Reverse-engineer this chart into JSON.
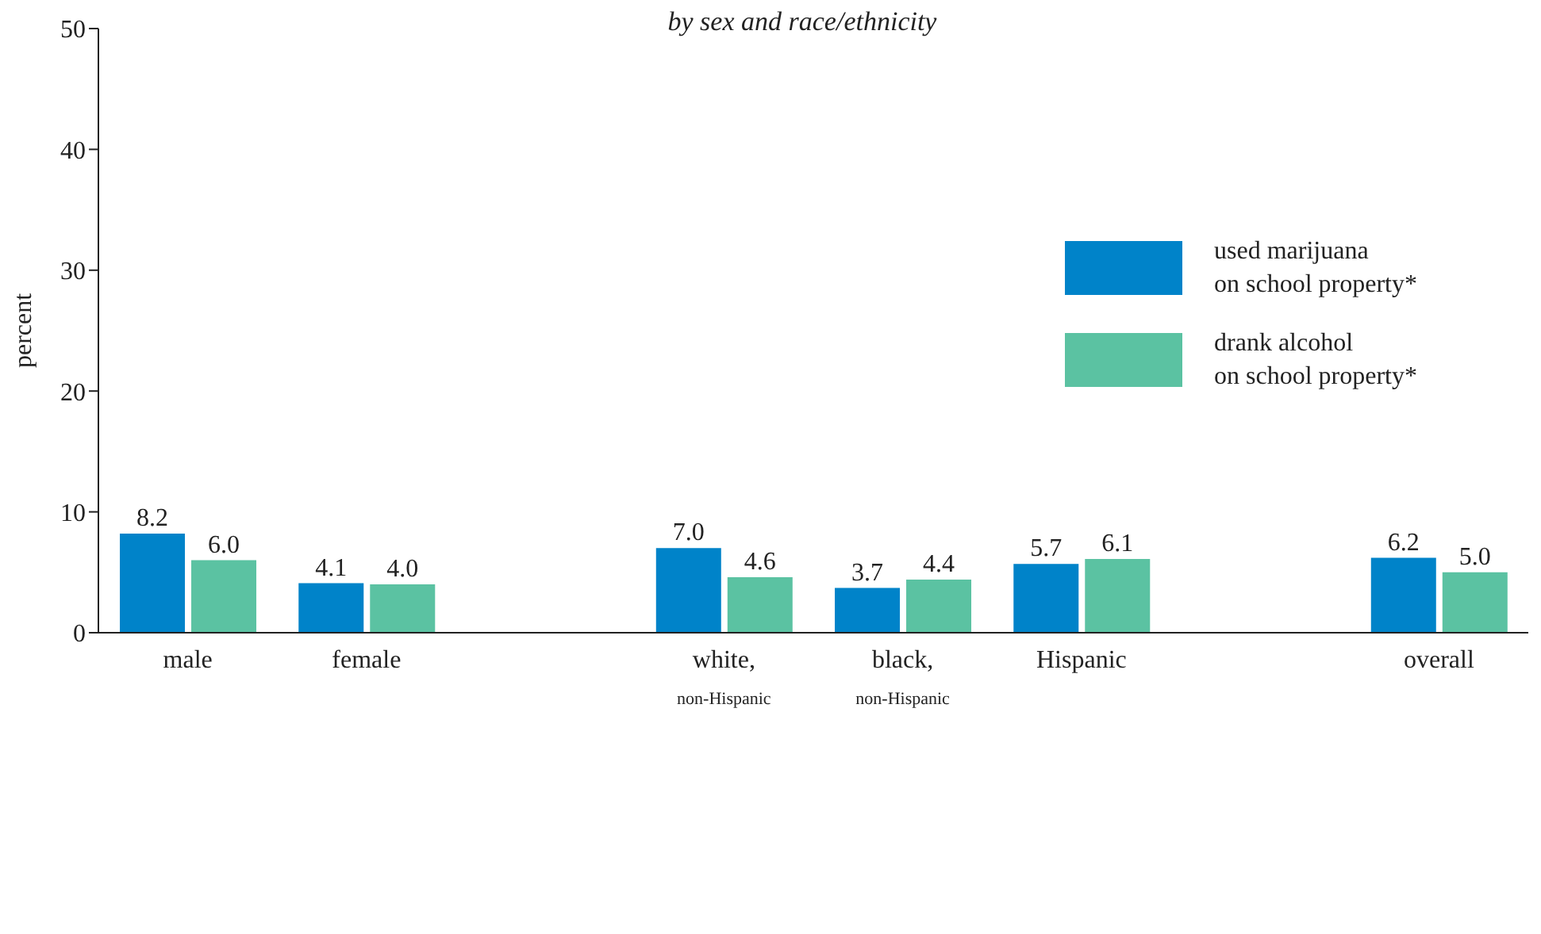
{
  "chart_data": {
    "type": "bar",
    "subtitle": "by sex and race/ethnicity",
    "ylabel": "percent",
    "categories": [
      "male",
      "female",
      null,
      "white,$_{non-Hispanic}$",
      "black,$_{non-Hispanic}$",
      "Hispanic",
      null,
      "overall"
    ],
    "series": [
      {
        "name": "used marijuana\non school property*",
        "color": "#0083c9",
        "values": [
          8.2,
          4.1,
          null,
          7.0,
          3.7,
          5.7,
          null,
          6.2
        ],
        "value_labels": [
          "8.2",
          "4.1",
          null,
          "7.0",
          "3.7",
          "5.7",
          null,
          "6.2"
        ]
      },
      {
        "name": "drank alcohol\non school property*",
        "color": "#5bc2a2",
        "values": [
          6.0,
          4.0,
          null,
          4.6,
          4.4,
          6.1,
          null,
          5.0
        ],
        "value_labels": [
          "6.0",
          "4.0",
          null,
          "4.6",
          "4.4",
          "6.1",
          null,
          "5.0"
        ]
      }
    ],
    "ylim": [
      0,
      50
    ],
    "yticks": [
      0,
      10,
      20,
      30,
      40,
      50
    ],
    "legend": "top right",
    "grid": false
  }
}
